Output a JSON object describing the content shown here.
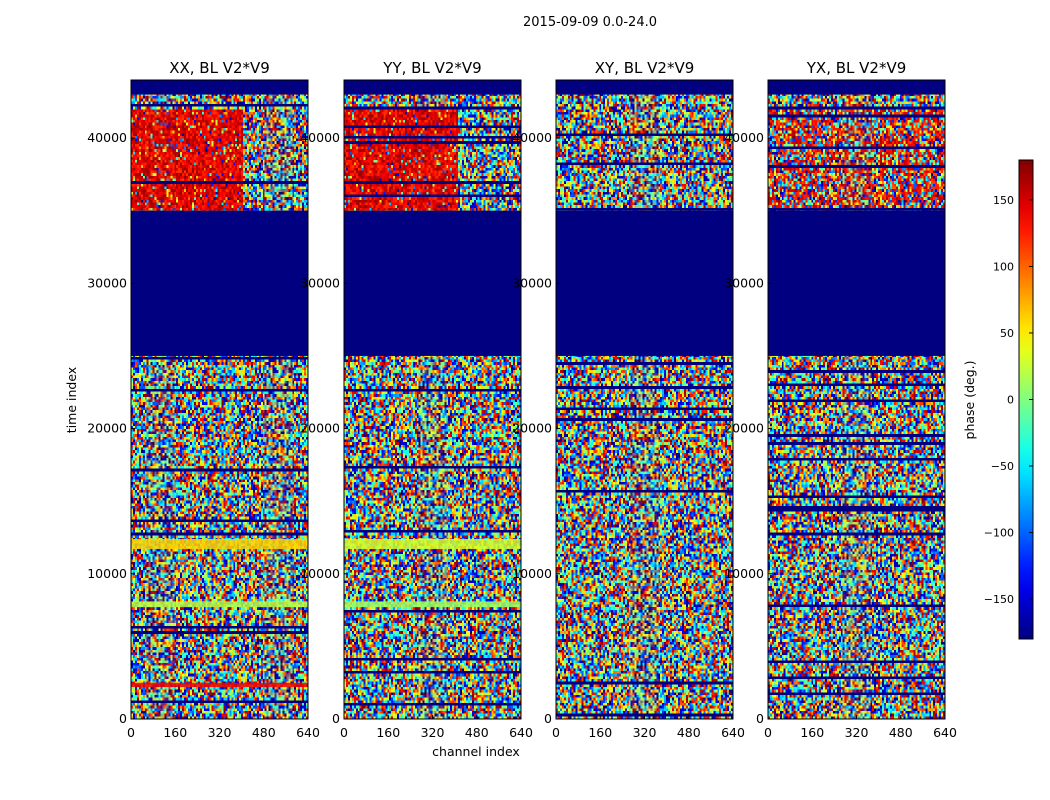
{
  "figure": {
    "suptitle": "2015-09-09 0.0-24.0"
  },
  "chart_data": {
    "type": "heatmap",
    "title": "2015-09-09 0.0-24.0",
    "xlabel": "channel index",
    "ylabel": "time index",
    "colorbar_label": "phase (deg.)",
    "colormap": "jet",
    "clim": [
      -180,
      180
    ],
    "colorbar_ticks": [
      "150",
      "100",
      "50",
      "0",
      "−50",
      "−100",
      "−150"
    ],
    "colorbar_tick_values": [
      150,
      100,
      50,
      0,
      -50,
      -100,
      -150
    ],
    "xlim": [
      0,
      640
    ],
    "ylim": [
      0,
      44000
    ],
    "x_ticks": [
      "0",
      "160",
      "320",
      "480",
      "640"
    ],
    "y_ticks": [
      "0",
      "10000",
      "20000",
      "30000",
      "40000"
    ],
    "y_tick_values": [
      0,
      10000,
      20000,
      30000,
      40000
    ],
    "panels": [
      {
        "title": "XX, BL V2*V9",
        "tint": "red-high",
        "bands": [
          {
            "from": 35000,
            "to": 25000,
            "kind": "flagged",
            "phase": -180
          },
          {
            "from": 44000,
            "to": 43000,
            "kind": "flagged",
            "phase": -180
          },
          {
            "from": 12400,
            "to": 11700,
            "kind": "constant",
            "phase": 60
          },
          {
            "from": 8100,
            "to": 7700,
            "kind": "constant",
            "phase": 20
          },
          {
            "from": 2500,
            "to": 2200,
            "kind": "constant",
            "phase": 140
          }
        ]
      },
      {
        "title": "YY, BL V2*V9",
        "tint": "red-high",
        "bands": [
          {
            "from": 35000,
            "to": 25000,
            "kind": "flagged",
            "phase": -180
          },
          {
            "from": 44000,
            "to": 43000,
            "kind": "flagged",
            "phase": -180
          },
          {
            "from": 12400,
            "to": 11700,
            "kind": "constant",
            "phase": 30
          },
          {
            "from": 8100,
            "to": 7700,
            "kind": "constant",
            "phase": 10
          }
        ]
      },
      {
        "title": "XY, BL V2*V9",
        "tint": "none",
        "bands": [
          {
            "from": 35000,
            "to": 25000,
            "kind": "flagged",
            "phase": -180
          },
          {
            "from": 44000,
            "to": 43000,
            "kind": "flagged",
            "phase": -180
          }
        ]
      },
      {
        "title": "YX, BL V2*V9",
        "tint": "mild",
        "bands": [
          {
            "from": 35000,
            "to": 25000,
            "kind": "flagged",
            "phase": -180
          },
          {
            "from": 44000,
            "to": 43000,
            "kind": "flagged",
            "phase": -180
          }
        ]
      }
    ]
  }
}
